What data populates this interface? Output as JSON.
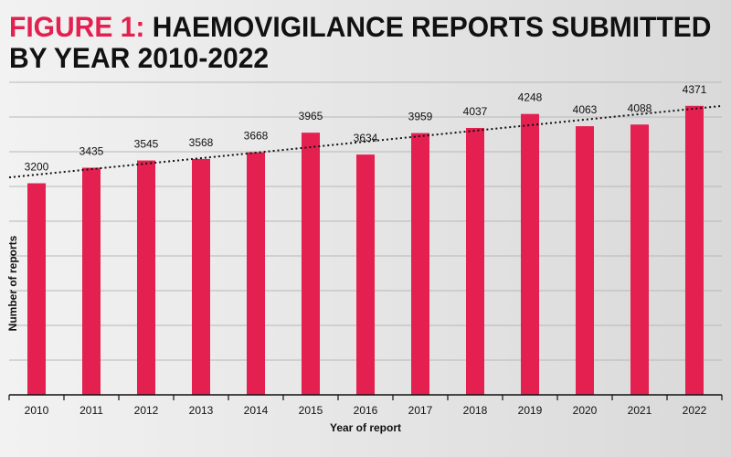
{
  "title": {
    "prefix": "FIGURE 1:",
    "line1": " HAEMOVIGILANCE REPORTS SUBMITTED",
    "line2": "BY YEAR 2010-2022"
  },
  "chart_data": {
    "type": "bar",
    "categories": [
      "2010",
      "2011",
      "2012",
      "2013",
      "2014",
      "2015",
      "2016",
      "2017",
      "2018",
      "2019",
      "2020",
      "2021",
      "2022"
    ],
    "values": [
      3200,
      3435,
      3545,
      3568,
      3668,
      3965,
      3634,
      3959,
      4037,
      4248,
      4063,
      4088,
      4371
    ],
    "xlabel": "Year of report",
    "ylabel": "Number of reports",
    "bar_color": "#e3204f",
    "trendline": true,
    "grid": true,
    "ylim": [
      0,
      4700
    ]
  }
}
